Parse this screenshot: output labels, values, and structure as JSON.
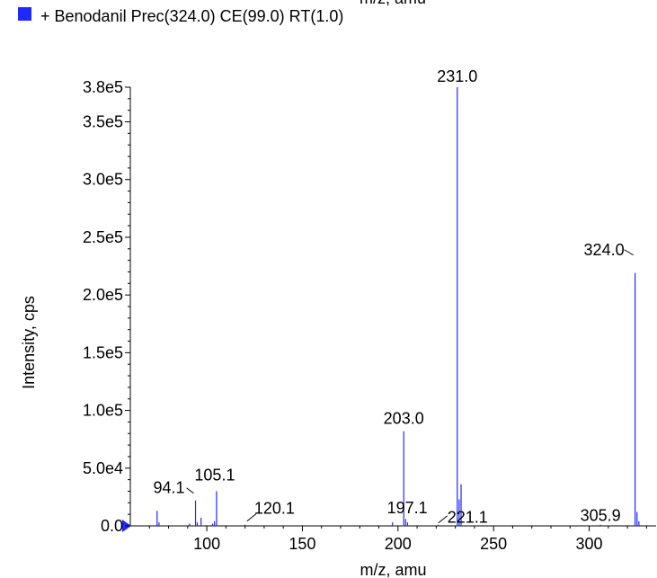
{
  "header": {
    "cut_xlabel": "m/z, amu"
  },
  "legend": {
    "label": "+ Benodanil  Prec(324.0) CE(99.0) RT(1.0)",
    "color": "#1f29ff",
    "icon": "legend-square-icon"
  },
  "chart_data": {
    "type": "bar",
    "title": "",
    "xlabel": "m/z, amu",
    "ylabel": "Intensity, cps",
    "xlim": [
      60,
      335
    ],
    "ylim": [
      0,
      380000
    ],
    "x_ticks": [
      100,
      150,
      200,
      250,
      300
    ],
    "x_tick_labels": [
      "100",
      "150",
      "200",
      "250",
      "300"
    ],
    "y_ticks": [
      0,
      50000,
      100000,
      150000,
      200000,
      250000,
      300000,
      350000,
      380000
    ],
    "y_tick_labels": [
      "0.0",
      "5.0e4",
      "1.0e5",
      "1.5e5",
      "2.0e5",
      "2.5e5",
      "3.0e5",
      "3.5e5",
      "3.8e5"
    ],
    "series": [
      {
        "color": "#1f29ff",
        "peaks": [
          {
            "mz": 74.0,
            "intensity": 13000
          },
          {
            "mz": 75.0,
            "intensity": 3000
          },
          {
            "mz": 91.0,
            "intensity": 2000
          },
          {
            "mz": 94.1,
            "intensity": 22000
          },
          {
            "mz": 95.0,
            "intensity": 3000
          },
          {
            "mz": 97.0,
            "intensity": 7000
          },
          {
            "mz": 103.0,
            "intensity": 2000
          },
          {
            "mz": 104.0,
            "intensity": 4000
          },
          {
            "mz": 105.1,
            "intensity": 30000
          },
          {
            "mz": 120.1,
            "intensity": 1000
          },
          {
            "mz": 197.1,
            "intensity": 3000
          },
          {
            "mz": 203.0,
            "intensity": 82000
          },
          {
            "mz": 204.0,
            "intensity": 6000
          },
          {
            "mz": 205.0,
            "intensity": 3000
          },
          {
            "mz": 221.1,
            "intensity": 1000
          },
          {
            "mz": 231.0,
            "intensity": 380000
          },
          {
            "mz": 232.0,
            "intensity": 23000
          },
          {
            "mz": 233.0,
            "intensity": 36000
          },
          {
            "mz": 305.9,
            "intensity": 1000
          },
          {
            "mz": 324.0,
            "intensity": 219000
          },
          {
            "mz": 325.0,
            "intensity": 12000
          },
          {
            "mz": 326.0,
            "intensity": 4000
          }
        ]
      }
    ],
    "annotations": [
      {
        "text": "231.0",
        "mz": 231.0,
        "intensity": 380000
      },
      {
        "text": "324.0",
        "mz": 324.0,
        "intensity": 219000
      },
      {
        "text": "203.0",
        "mz": 203.0,
        "intensity": 82000
      },
      {
        "text": "105.1",
        "mz": 105.1,
        "intensity": 30000
      },
      {
        "text": "94.1",
        "mz": 94.1,
        "intensity": 22000
      },
      {
        "text": "120.1",
        "mz": 120.1,
        "intensity": 1000
      },
      {
        "text": "197.1",
        "mz": 197.1,
        "intensity": 3000
      },
      {
        "text": "221.1",
        "mz": 221.1,
        "intensity": 1000
      },
      {
        "text": "305.9",
        "mz": 305.9,
        "intensity": 1000
      }
    ],
    "grid": false,
    "legend_position": "top-left"
  }
}
